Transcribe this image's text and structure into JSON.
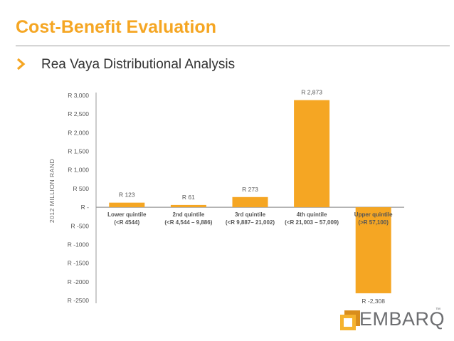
{
  "slide": {
    "title": "Cost-Benefit Evaluation",
    "subtitle": "Rea Vaya Distributional Analysis",
    "accent_color": "#f5a623",
    "bullet_icon": "chevron-right-icon"
  },
  "logo": {
    "text": "EMBARQ",
    "mark": "™",
    "icon": "embarq-logo-icon",
    "colors": {
      "mark_dark": "#d98e1c",
      "mark_light": "#f5b32e",
      "text": "#6d6e71"
    }
  },
  "chart_data": {
    "type": "bar",
    "ylabel": "2012 MILLION RAND",
    "ylim": [
      -2500,
      3000
    ],
    "yticks": [
      3000,
      2500,
      2000,
      1500,
      1000,
      500,
      0,
      -500,
      -1000,
      -1500,
      -2000,
      -2500
    ],
    "ytick_labels": [
      "R 3,000",
      "R 2,500",
      "R 2,000",
      "R 1,500",
      "R 1,000",
      "R 500",
      "R -",
      "R -500",
      "R -1000",
      "R -1500",
      "R -2000",
      "R -2500"
    ],
    "categories": [
      [
        "Lower quintile",
        "(<R 4544)"
      ],
      [
        "2nd quintile",
        "(<R 4,544 – 9,886)"
      ],
      [
        "3rd quintile",
        "(<R 9,887– 21,002)"
      ],
      [
        "4th quintile",
        "(<R 21,003 – 57,009)"
      ],
      [
        "Upper quintile",
        "(>R 57,100)"
      ]
    ],
    "values": [
      123,
      61,
      273,
      2873,
      -2308
    ],
    "data_labels": [
      "R 123",
      "R 61",
      "R 273",
      "R 2,873",
      "R -2,308"
    ],
    "bar_color": "#f5a623",
    "axis_color": "#9a9a9a",
    "grid": false,
    "legend": "none"
  }
}
